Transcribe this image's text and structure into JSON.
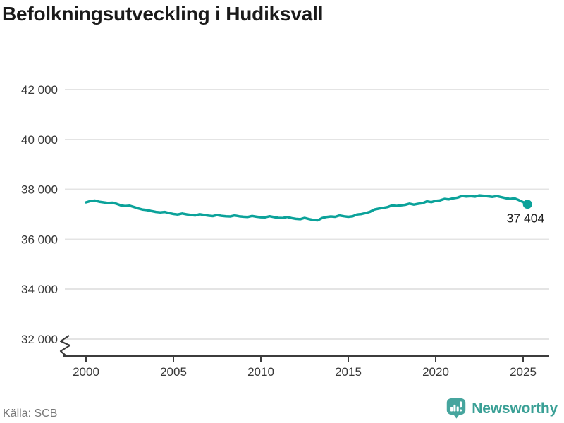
{
  "chart_data": {
    "type": "line",
    "title": "Befolkningsutveckling i Hudiksvall",
    "end_label": "37 404",
    "last_value": 37404,
    "axis_break": true,
    "grid": "horizontal",
    "ylim": [
      32000,
      42000
    ],
    "y_ticks": [
      42000,
      40000,
      38000,
      36000,
      34000,
      32000
    ],
    "y_tick_labels": [
      "42 000",
      "40 000",
      "38 000",
      "36 000",
      "34 000",
      "32 000"
    ],
    "x_ticks": [
      2000,
      2005,
      2010,
      2015,
      2020,
      2025
    ],
    "x_tick_labels": [
      "2000",
      "2005",
      "2010",
      "2015",
      "2020",
      "2025"
    ],
    "series": [
      {
        "name": "Befolkning i Hudiksvall",
        "color": "#0ba29a",
        "x": [
          2000,
          2000.25,
          2000.5,
          2000.75,
          2001,
          2001.25,
          2001.5,
          2001.75,
          2002,
          2002.25,
          2002.5,
          2002.75,
          2003,
          2003.25,
          2003.5,
          2003.75,
          2004,
          2004.25,
          2004.5,
          2004.75,
          2005,
          2005.25,
          2005.5,
          2005.75,
          2006,
          2006.25,
          2006.5,
          2006.75,
          2007,
          2007.25,
          2007.5,
          2007.75,
          2008,
          2008.25,
          2008.5,
          2008.75,
          2009,
          2009.25,
          2009.5,
          2009.75,
          2010,
          2010.25,
          2010.5,
          2010.75,
          2011,
          2011.25,
          2011.5,
          2011.75,
          2012,
          2012.25,
          2012.5,
          2012.75,
          2013,
          2013.25,
          2013.5,
          2013.75,
          2014,
          2014.25,
          2014.5,
          2014.75,
          2015,
          2015.25,
          2015.5,
          2015.75,
          2016,
          2016.25,
          2016.5,
          2016.75,
          2017,
          2017.25,
          2017.5,
          2017.75,
          2018,
          2018.25,
          2018.5,
          2018.75,
          2019,
          2019.25,
          2019.5,
          2019.75,
          2020,
          2020.25,
          2020.5,
          2020.75,
          2021,
          2021.25,
          2021.5,
          2021.75,
          2022,
          2022.25,
          2022.5,
          2022.75,
          2023,
          2023.25,
          2023.5,
          2023.75,
          2024,
          2024.25,
          2024.5,
          2024.75,
          2025,
          2025.25
        ],
        "values": [
          37480,
          37530,
          37550,
          37505,
          37480,
          37455,
          37465,
          37420,
          37360,
          37330,
          37345,
          37290,
          37235,
          37190,
          37170,
          37130,
          37095,
          37075,
          37095,
          37050,
          37015,
          36995,
          37035,
          37000,
          36975,
          36955,
          37005,
          36975,
          36945,
          36930,
          36970,
          36940,
          36925,
          36915,
          36955,
          36925,
          36905,
          36895,
          36935,
          36905,
          36885,
          36880,
          36925,
          36890,
          36860,
          36850,
          36895,
          36850,
          36820,
          36805,
          36855,
          36810,
          36775,
          36760,
          36850,
          36895,
          36915,
          36900,
          36955,
          36925,
          36900,
          36920,
          36995,
          37010,
          37050,
          37105,
          37195,
          37230,
          37260,
          37290,
          37355,
          37335,
          37360,
          37380,
          37430,
          37390,
          37425,
          37450,
          37520,
          37490,
          37540,
          37560,
          37620,
          37600,
          37640,
          37670,
          37735,
          37715,
          37730,
          37710,
          37760,
          37740,
          37720,
          37700,
          37730,
          37690,
          37650,
          37615,
          37640,
          37570,
          37490,
          37404
        ]
      }
    ]
  },
  "colors": {
    "line": "#0ba29a",
    "grid": "#e4e4e4",
    "axis": "#3c3c3c",
    "tick_label": "#383838",
    "end_label": "#222222",
    "title": "#1a1a1a",
    "source": "#787878",
    "brand_text": "#3aa096",
    "brand_icon": "#46a59e"
  },
  "footer": {
    "source": "Källa: SCB",
    "brand": "Newsworthy"
  }
}
